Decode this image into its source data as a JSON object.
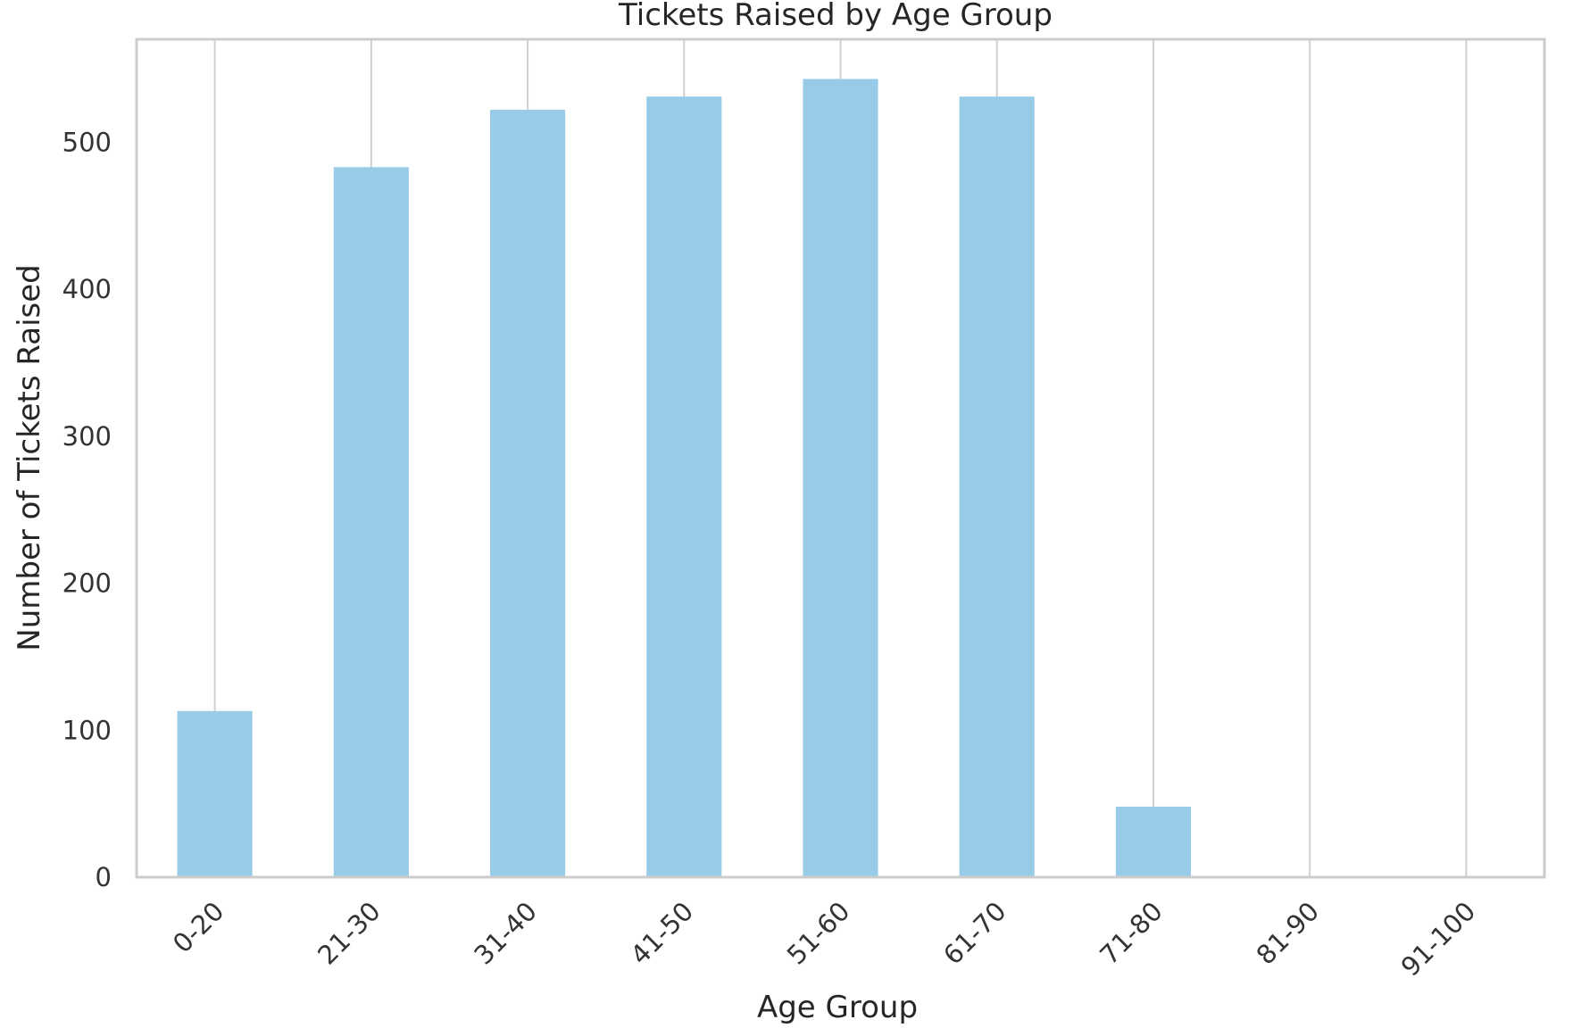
{
  "chart_data": {
    "type": "bar",
    "title": "Tickets Raised by Age Group",
    "xlabel": "Age Group",
    "ylabel": "Number of Tickets Raised",
    "categories": [
      "0-20",
      "21-30",
      "31-40",
      "41-50",
      "51-60",
      "61-70",
      "71-80",
      "81-90",
      "91-100"
    ],
    "values": [
      113,
      483,
      522,
      531,
      543,
      531,
      48,
      0,
      0
    ],
    "ylim": [
      0,
      570
    ],
    "yticks": [
      0,
      100,
      200,
      300,
      400,
      500
    ],
    "grid": "vertical",
    "bar_color": "#97cbe7",
    "xtick_rotation": -45
  }
}
